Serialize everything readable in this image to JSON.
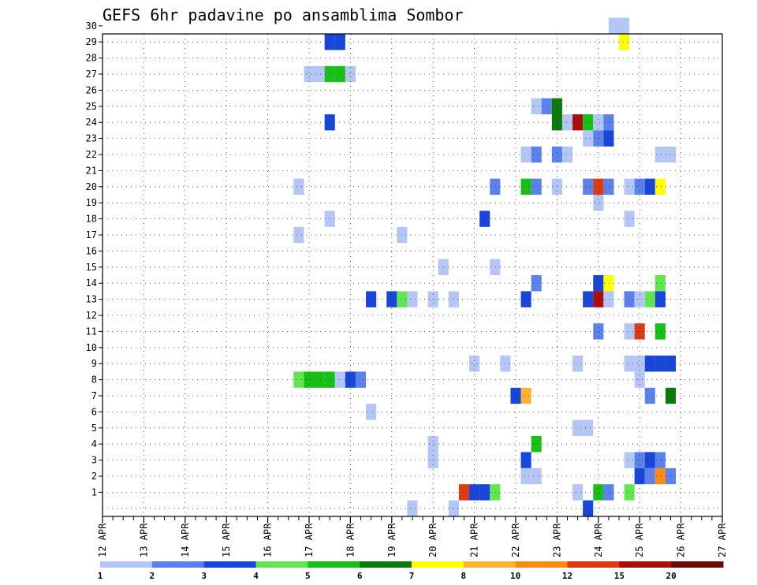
{
  "chart_data": {
    "type": "heatmap",
    "title": "GEFS 6hr padavine po ansamblima Sombor",
    "xlabel": "",
    "ylabel": "",
    "x_tick_labels": [
      "12 APR",
      "13 APR",
      "14 APR",
      "15 APR",
      "16 APR",
      "17 APR",
      "18 APR",
      "19 APR",
      "20 APR",
      "21 APR",
      "22 APR",
      "23 APR",
      "24 APR",
      "25 APR",
      "26 APR",
      "27 APR"
    ],
    "y_tick_labels": [
      "1",
      "2",
      "3",
      "4",
      "5",
      "6",
      "7",
      "8",
      "9",
      "10",
      "11",
      "12",
      "13",
      "14",
      "15",
      "16",
      "17",
      "18",
      "19",
      "20",
      "21",
      "22",
      "23",
      "24",
      "25",
      "26",
      "27",
      "28",
      "29",
      "30"
    ],
    "xlim": [
      0,
      60
    ],
    "ylim": [
      0,
      30
    ],
    "x_unit": "6-hour steps from 12 APR 00Z",
    "grid": true,
    "legend": {
      "placement": "bottom",
      "labels": [
        "1",
        "2",
        "3",
        "4",
        "5",
        "6",
        "7",
        "8",
        "10",
        "12",
        "15",
        "20"
      ],
      "colors": [
        "#b4c6f5",
        "#5a82ea",
        "#1846d8",
        "#62e650",
        "#17bf17",
        "#0b7a0b",
        "#ffff00",
        "#f7b331",
        "#f58c14",
        "#dc3a12",
        "#a80e0e",
        "#6e0808"
      ]
    },
    "cells": [
      {
        "t": 49.5,
        "m": 30,
        "v": 0
      },
      {
        "t": 50.5,
        "m": 30,
        "v": 0
      },
      {
        "t": 22,
        "m": 29,
        "v": 2
      },
      {
        "t": 23,
        "m": 29,
        "v": 2
      },
      {
        "t": 50.5,
        "m": 29,
        "v": 6
      },
      {
        "t": 20,
        "m": 27,
        "v": 0
      },
      {
        "t": 21,
        "m": 27,
        "v": 0
      },
      {
        "t": 22,
        "m": 27,
        "v": 4
      },
      {
        "t": 23,
        "m": 27,
        "v": 4
      },
      {
        "t": 24,
        "m": 27,
        "v": 0
      },
      {
        "t": 42,
        "m": 25,
        "v": 0
      },
      {
        "t": 43,
        "m": 25,
        "v": 1
      },
      {
        "t": 44,
        "m": 25,
        "v": 5
      },
      {
        "t": 22,
        "m": 24,
        "v": 2
      },
      {
        "t": 44,
        "m": 24,
        "v": 5
      },
      {
        "t": 45,
        "m": 24,
        "v": 0
      },
      {
        "t": 46,
        "m": 24,
        "v": 10
      },
      {
        "t": 47,
        "m": 24,
        "v": 4
      },
      {
        "t": 48,
        "m": 24,
        "v": 0
      },
      {
        "t": 49,
        "m": 24,
        "v": 1
      },
      {
        "t": 47,
        "m": 23,
        "v": 0
      },
      {
        "t": 48,
        "m": 23,
        "v": 1
      },
      {
        "t": 49,
        "m": 23,
        "v": 2
      },
      {
        "t": 41,
        "m": 22,
        "v": 0
      },
      {
        "t": 42,
        "m": 22,
        "v": 1
      },
      {
        "t": 44,
        "m": 22,
        "v": 1
      },
      {
        "t": 45,
        "m": 22,
        "v": 0
      },
      {
        "t": 54,
        "m": 22,
        "v": 0
      },
      {
        "t": 55,
        "m": 22,
        "v": 0
      },
      {
        "t": 19,
        "m": 20,
        "v": 0
      },
      {
        "t": 38,
        "m": 20,
        "v": 1
      },
      {
        "t": 41,
        "m": 20,
        "v": 4
      },
      {
        "t": 42,
        "m": 20,
        "v": 1
      },
      {
        "t": 44,
        "m": 20,
        "v": 0
      },
      {
        "t": 47,
        "m": 20,
        "v": 1
      },
      {
        "t": 48,
        "m": 20,
        "v": 9
      },
      {
        "t": 49,
        "m": 20,
        "v": 1
      },
      {
        "t": 51,
        "m": 20,
        "v": 0
      },
      {
        "t": 52,
        "m": 20,
        "v": 1
      },
      {
        "t": 53,
        "m": 20,
        "v": 2
      },
      {
        "t": 54,
        "m": 20,
        "v": 6
      },
      {
        "t": 48,
        "m": 19,
        "v": 0
      },
      {
        "t": 22,
        "m": 18,
        "v": 0
      },
      {
        "t": 37,
        "m": 18,
        "v": 2
      },
      {
        "t": 51,
        "m": 18,
        "v": 0
      },
      {
        "t": 19,
        "m": 17,
        "v": 0
      },
      {
        "t": 29,
        "m": 17,
        "v": 0
      },
      {
        "t": 33,
        "m": 15,
        "v": 0
      },
      {
        "t": 38,
        "m": 15,
        "v": 0
      },
      {
        "t": 42,
        "m": 14,
        "v": 1
      },
      {
        "t": 48,
        "m": 14,
        "v": 2
      },
      {
        "t": 49,
        "m": 14,
        "v": 6
      },
      {
        "t": 54,
        "m": 14,
        "v": 3
      },
      {
        "t": 26,
        "m": 13,
        "v": 2
      },
      {
        "t": 28,
        "m": 13,
        "v": 2
      },
      {
        "t": 29,
        "m": 13,
        "v": 3
      },
      {
        "t": 30,
        "m": 13,
        "v": 0
      },
      {
        "t": 32,
        "m": 13,
        "v": 0
      },
      {
        "t": 34,
        "m": 13,
        "v": 0
      },
      {
        "t": 41,
        "m": 13,
        "v": 2
      },
      {
        "t": 47,
        "m": 13,
        "v": 2
      },
      {
        "t": 48,
        "m": 13,
        "v": 10
      },
      {
        "t": 49,
        "m": 13,
        "v": 0
      },
      {
        "t": 51,
        "m": 13,
        "v": 1
      },
      {
        "t": 52,
        "m": 13,
        "v": 0
      },
      {
        "t": 53,
        "m": 13,
        "v": 3
      },
      {
        "t": 54,
        "m": 13,
        "v": 2
      },
      {
        "t": 48,
        "m": 11,
        "v": 1
      },
      {
        "t": 51,
        "m": 11,
        "v": 0
      },
      {
        "t": 52,
        "m": 11,
        "v": 9
      },
      {
        "t": 54,
        "m": 11,
        "v": 4
      },
      {
        "t": 36,
        "m": 9,
        "v": 0
      },
      {
        "t": 39,
        "m": 9,
        "v": 0
      },
      {
        "t": 46,
        "m": 9,
        "v": 0
      },
      {
        "t": 51,
        "m": 9,
        "v": 0
      },
      {
        "t": 52,
        "m": 9,
        "v": 0
      },
      {
        "t": 53,
        "m": 9,
        "v": 2
      },
      {
        "t": 54,
        "m": 9,
        "v": 2
      },
      {
        "t": 55,
        "m": 9,
        "v": 2
      },
      {
        "t": 19,
        "m": 8,
        "v": 3
      },
      {
        "t": 20,
        "m": 8,
        "v": 4
      },
      {
        "t": 21,
        "m": 8,
        "v": 4
      },
      {
        "t": 22,
        "m": 8,
        "v": 4
      },
      {
        "t": 23,
        "m": 8,
        "v": 0
      },
      {
        "t": 24,
        "m": 8,
        "v": 2
      },
      {
        "t": 25,
        "m": 8,
        "v": 1
      },
      {
        "t": 52,
        "m": 8,
        "v": 0
      },
      {
        "t": 40,
        "m": 7,
        "v": 2
      },
      {
        "t": 41,
        "m": 7,
        "v": 7
      },
      {
        "t": 53,
        "m": 7,
        "v": 1
      },
      {
        "t": 55,
        "m": 7,
        "v": 5
      },
      {
        "t": 26,
        "m": 6,
        "v": 0
      },
      {
        "t": 46,
        "m": 5,
        "v": 0
      },
      {
        "t": 47,
        "m": 5,
        "v": 0
      },
      {
        "t": 32,
        "m": 4,
        "v": 0
      },
      {
        "t": 42,
        "m": 4,
        "v": 4
      },
      {
        "t": 32,
        "m": 3,
        "v": 0
      },
      {
        "t": 41,
        "m": 3,
        "v": 2
      },
      {
        "t": 51,
        "m": 3,
        "v": 0
      },
      {
        "t": 52,
        "m": 3,
        "v": 1
      },
      {
        "t": 53,
        "m": 3,
        "v": 2
      },
      {
        "t": 54,
        "m": 3,
        "v": 1
      },
      {
        "t": 41,
        "m": 2,
        "v": 0
      },
      {
        "t": 42,
        "m": 2,
        "v": 0
      },
      {
        "t": 52,
        "m": 2,
        "v": 2
      },
      {
        "t": 53,
        "m": 2,
        "v": 1
      },
      {
        "t": 54,
        "m": 2,
        "v": 8
      },
      {
        "t": 55,
        "m": 2,
        "v": 1
      },
      {
        "t": 35,
        "m": 1,
        "v": 9
      },
      {
        "t": 36,
        "m": 1,
        "v": 2
      },
      {
        "t": 37,
        "m": 1,
        "v": 2
      },
      {
        "t": 38,
        "m": 1,
        "v": 3
      },
      {
        "t": 46,
        "m": 1,
        "v": 0
      },
      {
        "t": 48,
        "m": 1,
        "v": 4
      },
      {
        "t": 49,
        "m": 1,
        "v": 1
      },
      {
        "t": 51,
        "m": 1,
        "v": 3
      },
      {
        "t": 30,
        "m": 0,
        "v": 0
      },
      {
        "t": 34,
        "m": 0,
        "v": 0
      },
      {
        "t": 47,
        "m": 0,
        "v": 2
      }
    ]
  }
}
